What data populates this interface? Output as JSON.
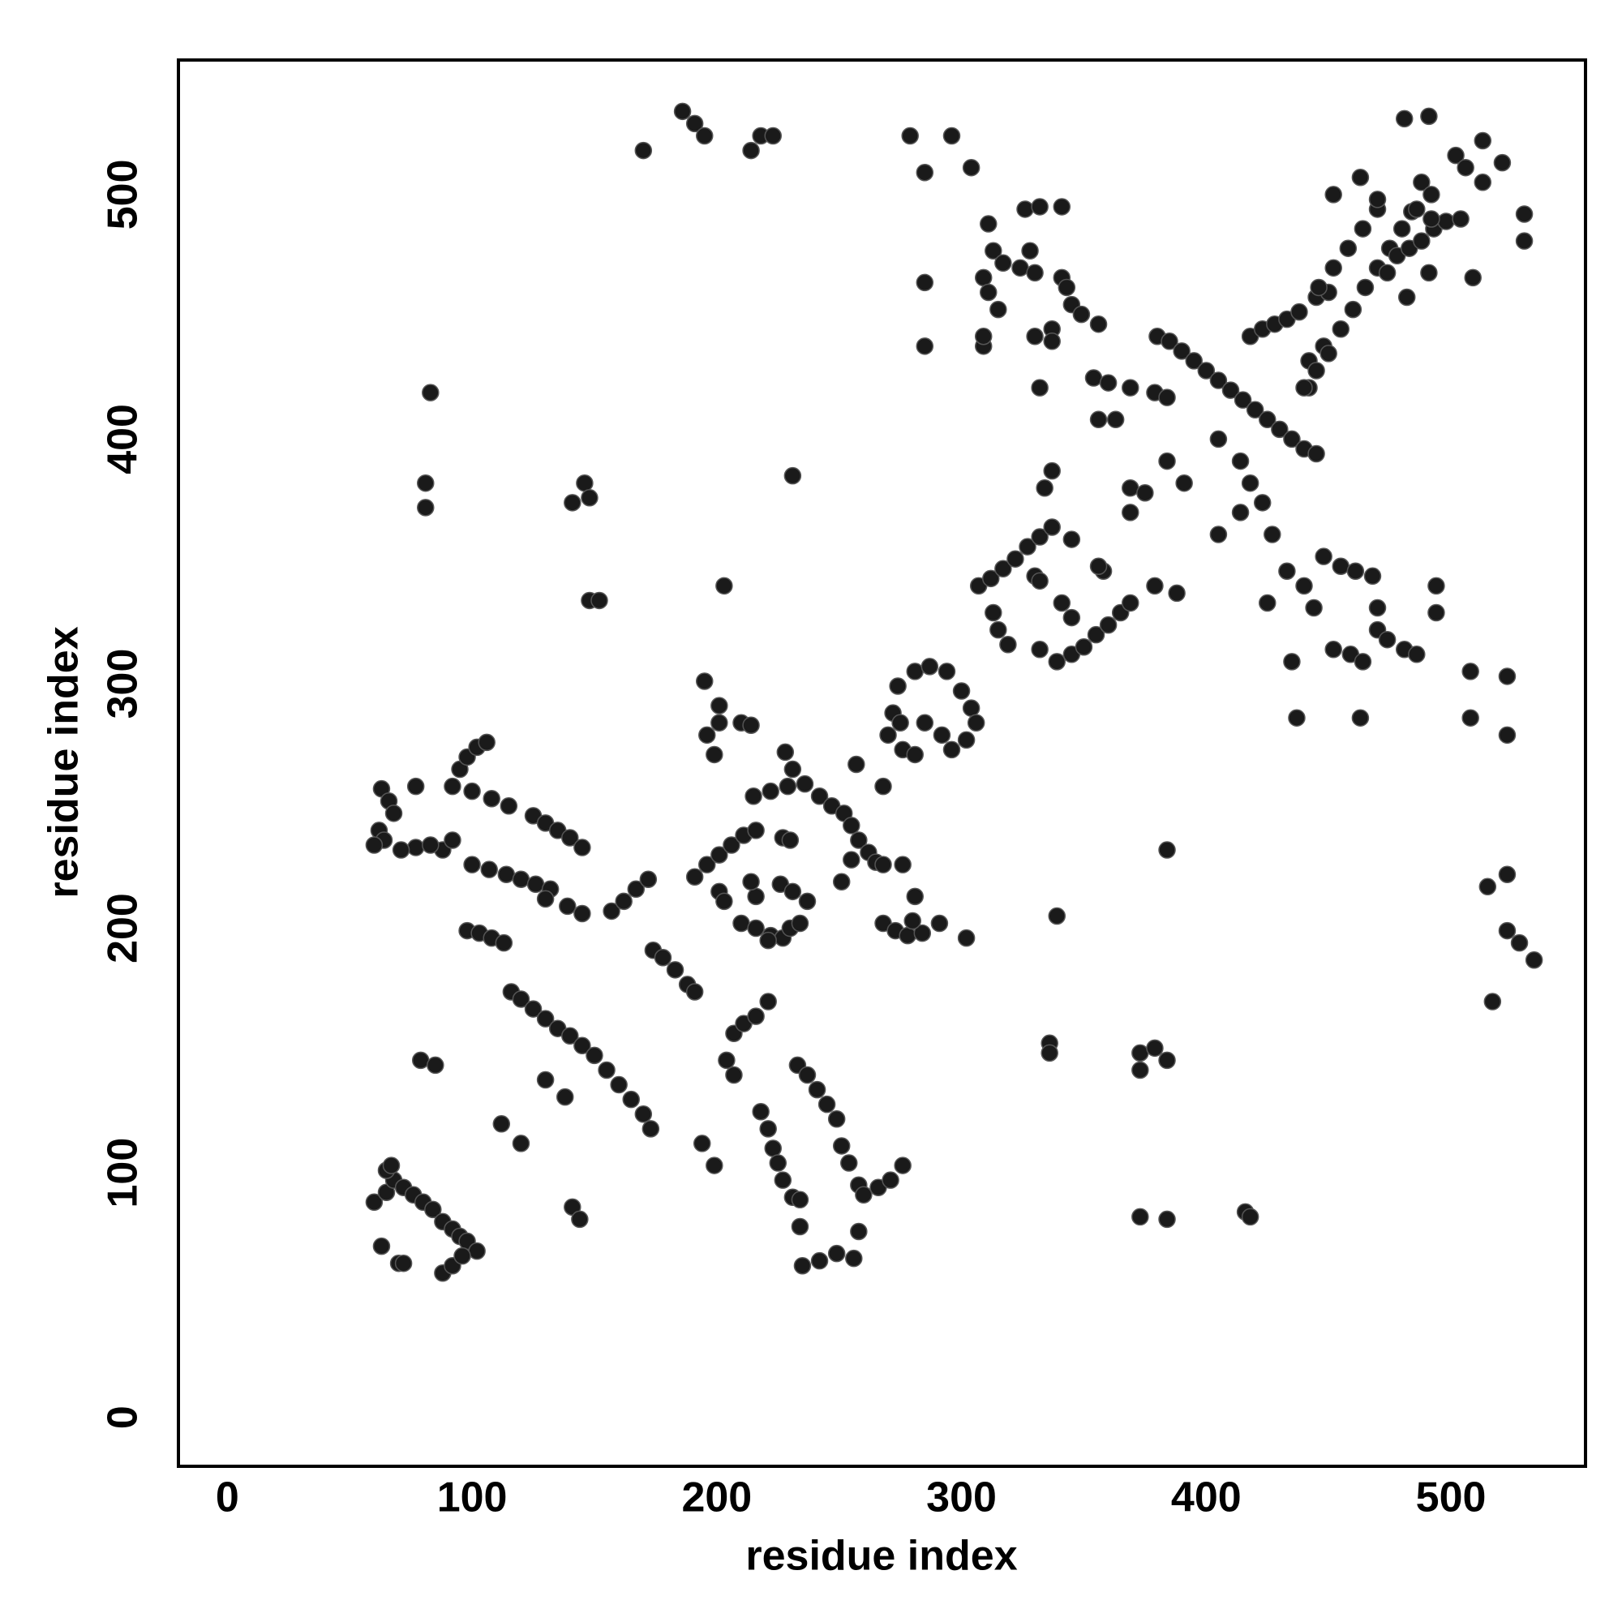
{
  "chart_data": {
    "type": "scatter",
    "xlabel": "residue index",
    "ylabel": "residue index",
    "xlim": [
      -20,
      555
    ],
    "ylim": [
      -20,
      555
    ],
    "xticks": [
      0,
      100,
      200,
      300,
      400,
      500
    ],
    "yticks": [
      0,
      100,
      200,
      300,
      400,
      500
    ],
    "color": "#1a1a1a",
    "x": [
      60,
      65,
      68,
      72,
      76,
      80,
      84,
      88,
      92,
      95,
      98,
      102,
      65,
      67,
      63,
      70,
      72,
      88,
      92,
      96,
      116,
      120,
      125,
      130,
      135,
      140,
      145,
      150,
      155,
      160,
      165,
      170,
      173,
      63,
      66,
      68,
      62,
      64,
      92,
      100,
      108,
      115,
      125,
      130,
      135,
      140,
      145,
      95,
      98,
      102,
      106,
      100,
      107,
      114,
      120,
      126,
      132,
      98,
      103,
      108,
      113,
      77,
      88,
      139,
      145,
      157,
      162,
      167,
      172,
      174,
      178,
      183,
      188,
      191,
      79,
      85,
      141,
      144,
      112,
      120,
      130,
      138,
      130,
      207,
      211,
      216,
      221,
      204,
      207,
      218,
      221,
      223,
      225,
      227,
      231,
      233,
      237,
      241,
      245,
      249,
      251,
      254,
      258,
      260,
      266,
      271,
      276,
      194,
      199,
      235,
      242,
      249,
      256,
      234,
      234,
      258,
      195,
      201,
      196,
      201,
      199,
      210,
      214,
      191,
      196,
      201,
      206,
      211,
      216,
      201,
      203,
      210,
      216,
      222,
      227,
      216,
      214,
      226,
      231,
      237,
      221,
      230,
      234,
      227,
      230,
      215,
      222,
      229,
      236,
      242,
      247,
      228,
      231,
      252,
      255,
      258,
      262,
      265,
      255,
      251,
      268,
      276,
      268,
      273,
      278,
      284,
      280,
      281,
      302,
      291,
      257,
      268,
      270,
      272,
      274,
      281,
      287,
      294,
      300,
      304,
      306,
      302,
      296,
      292,
      285,
      276,
      275,
      281,
      307,
      312,
      317,
      322,
      327,
      332,
      337,
      313,
      315,
      339,
      345,
      350,
      355,
      360,
      365,
      369,
      319,
      332,
      330,
      332,
      341,
      345,
      345,
      358,
      356,
      379,
      388,
      334,
      337,
      311,
      313,
      309,
      311,
      315,
      317,
      324,
      328,
      326,
      332,
      341,
      330,
      341,
      343,
      345,
      349,
      356,
      337,
      330,
      337,
      309,
      309,
      332,
      354,
      360,
      369,
      356,
      363,
      296,
      304,
      279,
      285,
      285,
      285,
      380,
      385,
      390,
      395,
      400,
      405,
      410,
      415,
      420,
      425,
      430,
      435,
      440,
      445,
      379,
      384,
      418,
      423,
      428,
      433,
      438,
      445,
      450,
      405,
      414,
      418,
      423,
      427,
      405,
      414,
      369,
      375,
      369,
      384,
      391,
      442,
      448,
      442,
      425,
      433,
      440,
      444,
      448,
      455,
      461,
      468,
      470,
      470,
      474,
      481,
      486,
      452,
      459,
      464,
      435,
      437,
      463,
      494,
      494,
      440,
      445,
      450,
      455,
      460,
      465,
      470,
      475,
      480,
      484,
      446,
      452,
      458,
      464,
      470,
      478,
      483,
      488,
      493,
      498,
      474,
      482,
      491,
      486,
      492,
      452,
      463,
      470,
      488,
      492,
      502,
      506,
      513,
      513,
      521,
      504,
      509,
      530,
      530,
      481,
      491,
      508,
      523,
      508,
      523,
      515,
      523,
      523,
      528,
      534,
      517,
      384,
      336,
      336,
      373,
      379,
      384,
      373,
      373,
      384,
      416,
      418,
      339,
      83,
      81,
      81,
      146,
      148,
      141,
      148,
      152,
      203,
      231,
      170,
      186,
      191,
      195,
      214,
      218,
      223,
      77,
      71,
      83,
      92,
      60
    ],
    "values": [
      88,
      92,
      97,
      94,
      91,
      88,
      85,
      80,
      77,
      74,
      72,
      68,
      101,
      103,
      70,
      63,
      63,
      59,
      62,
      66,
      174,
      171,
      167,
      163,
      159,
      156,
      152,
      148,
      142,
      136,
      130,
      124,
      118,
      257,
      252,
      247,
      240,
      236,
      258,
      256,
      253,
      250,
      246,
      243,
      240,
      237,
      233,
      265,
      270,
      274,
      276,
      226,
      224,
      222,
      220,
      218,
      216,
      199,
      198,
      196,
      194,
      233,
      232,
      209,
      206,
      207,
      211,
      216,
      220,
      191,
      188,
      183,
      177,
      174,
      146,
      144,
      86,
      81,
      120,
      112,
      138,
      131,
      212,
      157,
      161,
      164,
      170,
      146,
      140,
      125,
      118,
      110,
      104,
      97,
      90,
      144,
      140,
      134,
      128,
      122,
      111,
      104,
      95,
      91,
      94,
      97,
      103,
      112,
      103,
      62,
      64,
      67,
      65,
      78,
      89,
      76,
      301,
      291,
      279,
      284,
      271,
      284,
      283,
      221,
      226,
      230,
      234,
      238,
      240,
      215,
      211,
      202,
      200,
      197,
      196,
      213,
      219,
      218,
      215,
      211,
      195,
      200,
      202,
      237,
      236,
      254,
      256,
      258,
      259,
      254,
      250,
      272,
      265,
      247,
      242,
      236,
      231,
      227,
      228,
      219,
      226,
      226,
      202,
      199,
      197,
      198,
      203,
      213,
      196,
      202,
      267,
      258,
      279,
      288,
      299,
      305,
      307,
      305,
      297,
      290,
      284,
      277,
      273,
      279,
      284,
      273,
      284,
      271,
      340,
      343,
      347,
      351,
      356,
      360,
      364,
      329,
      322,
      309,
      312,
      315,
      320,
      324,
      329,
      333,
      316,
      314,
      344,
      342,
      333,
      327,
      359,
      346,
      348,
      340,
      337,
      380,
      387,
      488,
      477,
      466,
      460,
      453,
      472,
      470,
      477,
      494,
      495,
      495,
      468,
      466,
      462,
      455,
      451,
      447,
      445,
      442,
      440,
      438,
      442,
      421,
      425,
      423,
      421,
      408,
      408,
      524,
      511,
      524,
      509,
      464,
      438,
      442,
      440,
      436,
      432,
      428,
      424,
      420,
      416,
      412,
      408,
      404,
      400,
      396,
      394,
      419,
      417,
      442,
      445,
      447,
      449,
      452,
      458,
      460,
      400,
      391,
      382,
      374,
      361,
      361,
      370,
      380,
      378,
      370,
      391,
      382,
      432,
      438,
      421,
      333,
      346,
      340,
      331,
      352,
      348,
      346,
      344,
      331,
      322,
      318,
      314,
      312,
      314,
      312,
      309,
      309,
      286,
      286,
      340,
      329,
      421,
      428,
      435,
      445,
      453,
      462,
      470,
      478,
      486,
      493,
      462,
      470,
      478,
      486,
      494,
      475,
      478,
      481,
      486,
      489,
      468,
      458,
      468,
      494,
      490,
      500,
      507,
      498,
      505,
      500,
      516,
      511,
      505,
      522,
      513,
      490,
      466,
      492,
      481,
      531,
      532,
      305,
      303,
      286,
      279,
      217,
      222,
      199,
      194,
      187,
      170,
      232,
      153,
      149,
      149,
      151,
      146,
      142,
      82,
      81,
      84,
      82,
      205,
      419,
      382,
      372,
      382,
      376,
      374,
      334,
      334,
      340,
      385,
      518,
      534,
      529,
      524,
      518,
      524,
      524,
      258,
      232,
      234,
      236,
      234
    ]
  }
}
